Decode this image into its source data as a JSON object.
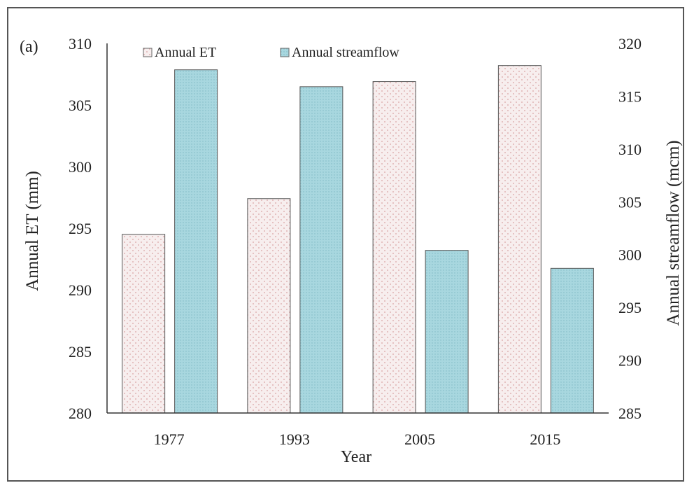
{
  "chart_data": {
    "type": "bar",
    "panel_label": "(a)",
    "categories": [
      "1977",
      "1993",
      "2005",
      "2015"
    ],
    "series": [
      {
        "name": "Annual ET",
        "axis": "left",
        "values": [
          294.5,
          297.4,
          306.9,
          308.2
        ],
        "fill": "#f7eeee",
        "dot_color": "#d9a3a3"
      },
      {
        "name": "Annual streamflow",
        "axis": "right",
        "values": [
          317.5,
          315.9,
          300.4,
          298.7
        ],
        "fill": "#a8d7df",
        "dot_color": "#7fbac4"
      }
    ],
    "xlabel": "Year",
    "ylabel_left": "Annual ET (mm)",
    "ylabel_right": "Annual streamflow (mcm)",
    "ylim_left": [
      280,
      310
    ],
    "ylim_right": [
      285,
      320
    ],
    "yticks_left": [
      "280",
      "285",
      "290",
      "295",
      "300",
      "305",
      "310"
    ],
    "yticks_right": [
      "285",
      "290",
      "295",
      "300",
      "305",
      "310",
      "315",
      "320"
    ],
    "grid": false,
    "legend_position": "top"
  }
}
